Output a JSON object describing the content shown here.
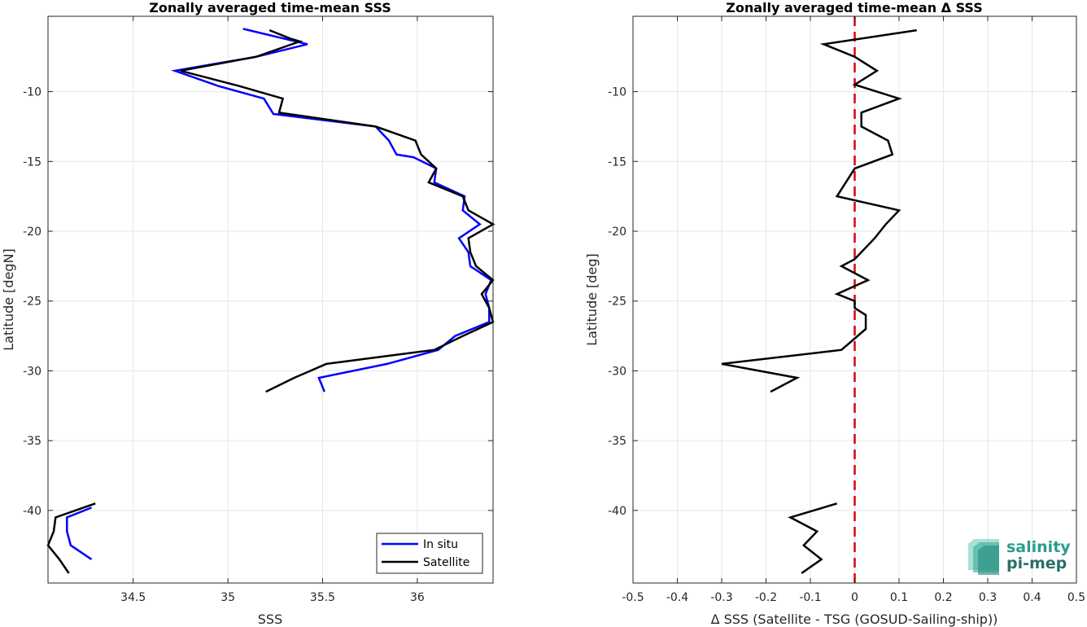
{
  "chart_data": [
    {
      "type": "line",
      "title": "Zonally averaged time-mean SSS",
      "xlabel": "SSS",
      "ylabel": "Latitude [degN]",
      "xlim": [
        34.05,
        36.4
      ],
      "ylim": [
        -45.2,
        -4.6
      ],
      "xticks": [
        "34.5",
        "35",
        "35.5",
        "36"
      ],
      "xtick_values": [
        34.5,
        35,
        35.5,
        36
      ],
      "yticks": [
        "-10",
        "-15",
        "-20",
        "-25",
        "-30",
        "-35",
        "-40"
      ],
      "ytick_values": [
        -10,
        -15,
        -20,
        -25,
        -30,
        -35,
        -40
      ],
      "grid": true,
      "legend_position": "bottom-right",
      "series": [
        {
          "name": "In situ",
          "color": "#0000ff",
          "segments": [
            [
              [
                35.08,
                -5.5
              ],
              [
                35.42,
                -6.6
              ],
              [
                35.15,
                -7.5
              ],
              [
                34.72,
                -8.5
              ],
              [
                34.95,
                -9.6
              ],
              [
                35.19,
                -10.5
              ],
              [
                35.24,
                -11.6
              ],
              [
                35.78,
                -12.5
              ],
              [
                35.85,
                -13.5
              ],
              [
                35.89,
                -14.5
              ],
              [
                35.98,
                -14.7
              ],
              [
                36.1,
                -15.5
              ],
              [
                36.09,
                -16.5
              ],
              [
                36.25,
                -17.5
              ],
              [
                36.24,
                -18.5
              ],
              [
                36.33,
                -19.5
              ],
              [
                36.22,
                -20.5
              ],
              [
                36.27,
                -21.5
              ],
              [
                36.28,
                -22.5
              ],
              [
                36.39,
                -23.5
              ],
              [
                36.36,
                -24.5
              ],
              [
                36.38,
                -25.5
              ],
              [
                36.38,
                -26.5
              ],
              [
                36.2,
                -27.5
              ],
              [
                36.11,
                -28.5
              ],
              [
                35.84,
                -29.5
              ],
              [
                35.48,
                -30.5
              ],
              [
                35.51,
                -31.5
              ]
            ],
            [
              [
                34.28,
                -39.8
              ],
              [
                34.15,
                -40.5
              ],
              [
                34.15,
                -41.5
              ],
              [
                34.17,
                -42.5
              ],
              [
                34.28,
                -43.5
              ]
            ]
          ]
        },
        {
          "name": "Satellite",
          "color": "#000000",
          "segments": [
            [
              [
                35.22,
                -5.6
              ],
              [
                35.33,
                -6.2
              ],
              [
                35.38,
                -6.4
              ],
              [
                35.15,
                -7.5
              ],
              [
                34.75,
                -8.5
              ],
              [
                35.06,
                -9.6
              ],
              [
                35.29,
                -10.5
              ],
              [
                35.27,
                -11.5
              ],
              [
                35.78,
                -12.5
              ],
              [
                35.99,
                -13.5
              ],
              [
                36.02,
                -14.5
              ],
              [
                36.1,
                -15.5
              ],
              [
                36.06,
                -16.5
              ],
              [
                36.24,
                -17.5
              ],
              [
                36.27,
                -18.5
              ],
              [
                36.4,
                -19.5
              ],
              [
                36.27,
                -20.5
              ],
              [
                36.28,
                -21.5
              ],
              [
                36.31,
                -22.5
              ],
              [
                36.4,
                -23.5
              ],
              [
                36.34,
                -24.5
              ],
              [
                36.38,
                -25.5
              ],
              [
                36.4,
                -26.5
              ],
              [
                36.24,
                -27.5
              ],
              [
                36.09,
                -28.5
              ],
              [
                35.52,
                -29.5
              ],
              [
                35.35,
                -30.5
              ],
              [
                35.2,
                -31.5
              ]
            ],
            [
              [
                34.3,
                -39.5
              ],
              [
                34.09,
                -40.5
              ],
              [
                34.08,
                -41.5
              ],
              [
                34.05,
                -42.5
              ],
              [
                34.11,
                -43.5
              ],
              [
                34.16,
                -44.5
              ]
            ]
          ]
        }
      ]
    },
    {
      "type": "line",
      "title": "Zonally averaged time-mean Δ SSS",
      "xlabel": "Δ SSS (Satellite - TSG (GOSUD-Sailing-ship))",
      "ylabel": "Latitude [deg]",
      "xlim": [
        -0.5,
        0.5
      ],
      "ylim": [
        -45.2,
        -4.6
      ],
      "xticks": [
        "-0.5",
        "-0.4",
        "-0.3",
        "-0.2",
        "-0.1",
        "0",
        "0.1",
        "0.2",
        "0.3",
        "0.4",
        "0.5"
      ],
      "xtick_values": [
        -0.5,
        -0.4,
        -0.3,
        -0.2,
        -0.1,
        0,
        0.1,
        0.2,
        0.3,
        0.4,
        0.5
      ],
      "yticks": [
        "-10",
        "-15",
        "-20",
        "-25",
        "-30",
        "-35",
        "-40"
      ],
      "ytick_values": [
        -10,
        -15,
        -20,
        -25,
        -30,
        -35,
        -40
      ],
      "grid": true,
      "zero_line": {
        "x": 0,
        "color": "#e00000",
        "style": "dashed"
      },
      "series": [
        {
          "color": "#000000",
          "segments": [
            [
              [
                0.14,
                -5.6
              ],
              [
                -0.07,
                -6.6
              ],
              [
                0.0,
                -7.5
              ],
              [
                0.05,
                -8.5
              ],
              [
                0.0,
                -9.5
              ],
              [
                0.1,
                -10.5
              ],
              [
                0.015,
                -11.5
              ],
              [
                0.015,
                -12.5
              ],
              [
                0.075,
                -13.5
              ],
              [
                0.085,
                -14.5
              ],
              [
                0.0,
                -15.5
              ],
              [
                -0.04,
                -17.5
              ],
              [
                0.1,
                -18.5
              ],
              [
                0.07,
                -19.5
              ],
              [
                0.045,
                -20.5
              ],
              [
                0.0,
                -22
              ],
              [
                -0.03,
                -22.5
              ],
              [
                0.03,
                -23.5
              ],
              [
                -0.04,
                -24.5
              ],
              [
                0.0,
                -25
              ],
              [
                0.0,
                -25.5
              ],
              [
                0.025,
                -26
              ],
              [
                0.025,
                -27
              ],
              [
                -0.03,
                -28.5
              ],
              [
                -0.3,
                -29.5
              ],
              [
                -0.13,
                -30.5
              ],
              [
                -0.19,
                -31.5
              ]
            ],
            [
              [
                -0.04,
                -39.5
              ],
              [
                -0.145,
                -40.5
              ],
              [
                -0.085,
                -41.5
              ],
              [
                -0.115,
                -42.5
              ],
              [
                -0.075,
                -43.5
              ],
              [
                -0.12,
                -44.5
              ]
            ]
          ]
        }
      ]
    }
  ],
  "legend": {
    "items": [
      "In situ",
      "Satellite"
    ]
  },
  "logo": {
    "line1": "salinity",
    "line2": "pi-mep"
  }
}
